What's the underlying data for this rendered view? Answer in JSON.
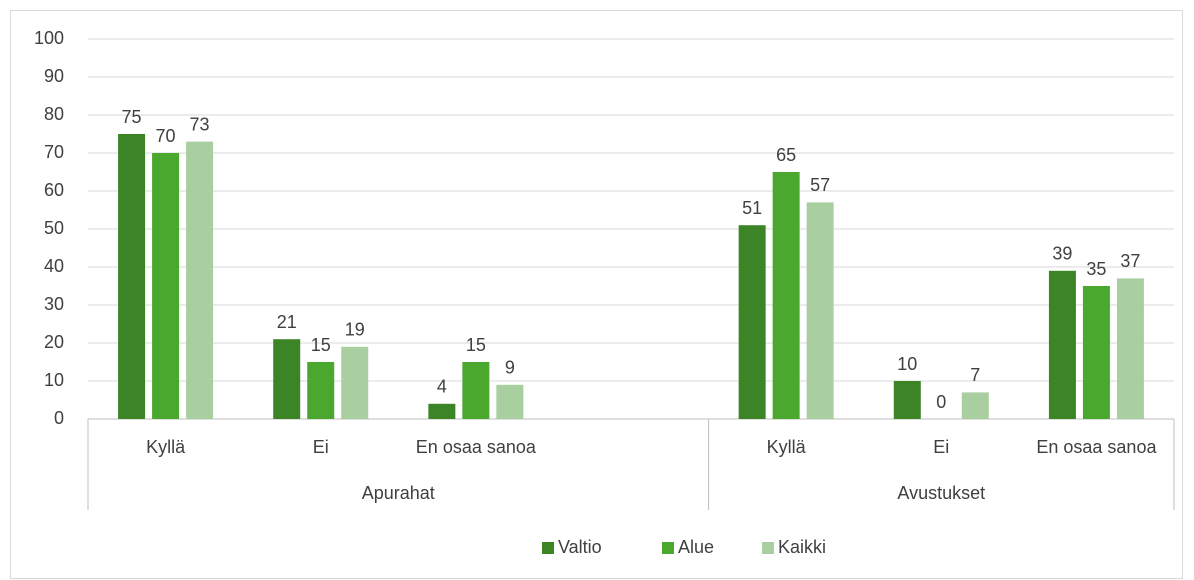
{
  "chart_data": {
    "type": "bar",
    "categories": [
      "Kyllä",
      "Ei",
      "En osaa sanoa",
      null,
      "Kyllä",
      "Ei",
      "En osaa sanoa"
    ],
    "groups": [
      {
        "label": "Apurahat",
        "count": 4
      },
      {
        "label": "Avustukset",
        "count": 3
      }
    ],
    "series": [
      {
        "name": "Valtio",
        "color": "#3c8527",
        "values": [
          75,
          21,
          4,
          null,
          51,
          10,
          39
        ]
      },
      {
        "name": "Alue",
        "color": "#4aa82e",
        "values": [
          70,
          15,
          15,
          null,
          65,
          0,
          35
        ]
      },
      {
        "name": "Kaikki",
        "color": "#a9cfa0",
        "values": [
          73,
          19,
          9,
          null,
          57,
          7,
          37
        ]
      }
    ],
    "ylim": [
      0,
      100
    ],
    "yticks": [
      0,
      10,
      20,
      30,
      40,
      50,
      60,
      70,
      80,
      90,
      100
    ],
    "grid": true,
    "legend": "bottom"
  }
}
